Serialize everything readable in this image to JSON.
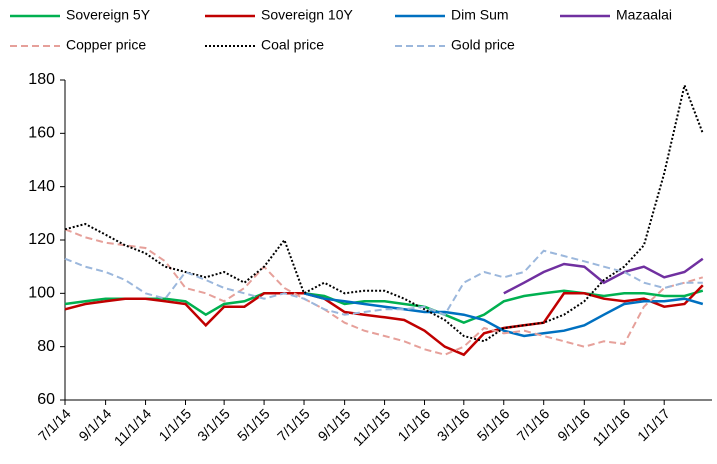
{
  "chart_data": {
    "type": "line",
    "x": [
      "7/1/14",
      "8/1/14",
      "9/1/14",
      "10/1/14",
      "11/1/14",
      "12/1/14",
      "1/1/15",
      "2/1/15",
      "3/1/15",
      "4/1/15",
      "5/1/15",
      "6/1/15",
      "7/1/15",
      "8/1/15",
      "9/1/15",
      "10/1/15",
      "11/1/15",
      "12/1/15",
      "1/1/16",
      "2/1/16",
      "3/1/16",
      "4/1/16",
      "5/1/16",
      "6/1/16",
      "7/1/16",
      "8/1/16",
      "9/1/16",
      "10/1/16",
      "11/1/16",
      "12/1/16",
      "1/1/17",
      "2/1/17",
      "3/1/17"
    ],
    "series": [
      {
        "name": "Sovereign 5Y",
        "color": "#00b050",
        "style": "solid",
        "values": [
          96,
          97,
          98,
          98,
          98,
          98,
          97,
          92,
          96,
          97,
          100,
          100,
          100,
          99,
          96,
          97,
          97,
          96,
          95,
          92,
          89,
          92,
          97,
          99,
          100,
          101,
          100,
          99,
          100,
          100,
          99,
          99,
          101
        ]
      },
      {
        "name": "Sovereign 10Y",
        "color": "#c00000",
        "style": "solid",
        "values": [
          94,
          96,
          97,
          98,
          98,
          97,
          96,
          88,
          95,
          95,
          100,
          100,
          100,
          98,
          93,
          92,
          91,
          90,
          86,
          80,
          77,
          85,
          87,
          88,
          89,
          100,
          100,
          98,
          97,
          98,
          95,
          96,
          103
        ]
      },
      {
        "name": "Dim Sum",
        "color": "#0070c0",
        "style": "solid",
        "values": [
          null,
          null,
          null,
          null,
          null,
          null,
          null,
          null,
          null,
          null,
          null,
          null,
          100,
          98,
          97,
          96,
          95,
          94,
          93,
          93,
          92,
          90,
          86,
          84,
          85,
          86,
          88,
          92,
          96,
          97,
          97,
          98,
          96
        ]
      },
      {
        "name": "Mazaalai",
        "color": "#7030a0",
        "style": "solid",
        "values": [
          null,
          null,
          null,
          null,
          null,
          null,
          null,
          null,
          null,
          null,
          null,
          null,
          null,
          null,
          null,
          null,
          null,
          null,
          null,
          null,
          null,
          null,
          100,
          104,
          108,
          111,
          110,
          104,
          108,
          110,
          106,
          108,
          113
        ]
      },
      {
        "name": "Copper price",
        "color": "#e6a09a",
        "style": "dashed",
        "values": [
          124,
          121,
          119,
          118,
          117,
          112,
          102,
          100,
          97,
          102,
          110,
          102,
          98,
          94,
          89,
          86,
          84,
          82,
          79,
          77,
          80,
          87,
          85,
          86,
          84,
          82,
          80,
          82,
          81,
          95,
          102,
          104,
          106
        ]
      },
      {
        "name": "Coal price",
        "color": "#000000",
        "style": "dotted",
        "values": [
          124,
          126,
          122,
          118,
          115,
          110,
          108,
          106,
          108,
          104,
          110,
          120,
          100,
          104,
          100,
          101,
          101,
          98,
          94,
          90,
          84,
          82,
          87,
          88,
          89,
          92,
          97,
          105,
          110,
          118,
          145,
          178,
          160
        ]
      },
      {
        "name": "Gold price",
        "color": "#9bb7dc",
        "style": "dashed",
        "values": [
          113,
          110,
          108,
          105,
          100,
          98,
          108,
          105,
          102,
          100,
          98,
          100,
          98,
          94,
          92,
          93,
          94,
          94,
          95,
          92,
          104,
          108,
          106,
          108,
          116,
          114,
          112,
          110,
          108,
          104,
          102,
          104,
          104
        ]
      }
    ],
    "xlim": [
      "7/1/14",
      "3/15/17"
    ],
    "xticks": [
      "7/1/14",
      "9/1/14",
      "11/1/14",
      "1/1/15",
      "3/1/15",
      "5/1/15",
      "7/1/15",
      "9/1/15",
      "11/1/15",
      "1/1/16",
      "3/1/16",
      "5/1/16",
      "7/1/16",
      "9/1/16",
      "11/1/16",
      "1/1/17"
    ],
    "ylim": [
      60,
      180
    ],
    "yticks": [
      60,
      80,
      100,
      120,
      140,
      160,
      180
    ],
    "grid": false
  }
}
